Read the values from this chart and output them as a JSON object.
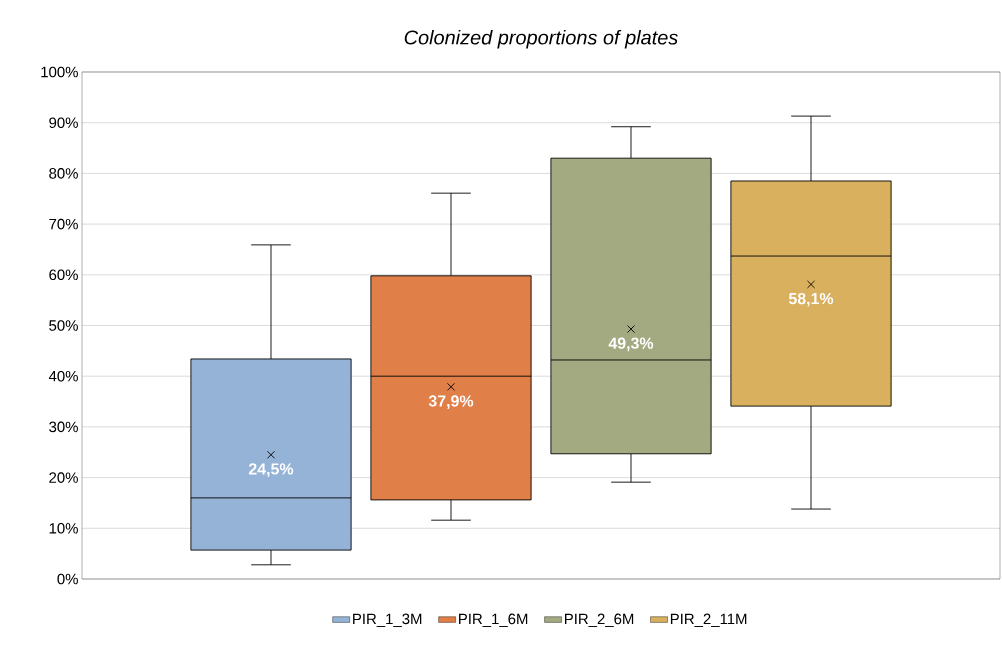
{
  "chart_data": {
    "type": "box",
    "title": "Colonized proportions of plates",
    "categories": [
      null
    ],
    "series": [
      {
        "name": "PIR_1_3M",
        "color": "#95b3d7",
        "boxes": [
          {
            "low": 2.8,
            "q1": 5.7,
            "median": 16.0,
            "q3": 43.4,
            "high": 65.9,
            "mean": 24.5
          }
        ],
        "value_labels": [
          "24,5%"
        ]
      },
      {
        "name": "PIR_1_6M",
        "color": "#e07f48",
        "boxes": [
          {
            "low": 11.6,
            "q1": 15.6,
            "median": 40.0,
            "q3": 59.8,
            "high": 76.1,
            "mean": 37.9
          }
        ],
        "value_labels": [
          "37,9%"
        ]
      },
      {
        "name": "PIR_2_6M",
        "color": "#a3aa82",
        "boxes": [
          {
            "low": 19.1,
            "q1": 24.7,
            "median": 43.2,
            "q3": 83.0,
            "high": 89.2,
            "mean": 49.3
          }
        ],
        "value_labels": [
          "49,3%"
        ]
      },
      {
        "name": "PIR_2_11M",
        "color": "#d8b05e",
        "boxes": [
          {
            "low": 13.8,
            "q1": 34.1,
            "median": 63.7,
            "q3": 78.5,
            "high": 91.3,
            "mean": 58.1
          }
        ],
        "value_labels": [
          "58,1%"
        ]
      }
    ],
    "ylim": [
      0,
      100
    ],
    "yticks": [
      {
        "value": 0,
        "label": "0%"
      },
      {
        "value": 10,
        "label": "10%"
      },
      {
        "value": 20,
        "label": "20%"
      },
      {
        "value": 30,
        "label": "30%"
      },
      {
        "value": 40,
        "label": "40%"
      },
      {
        "value": 50,
        "label": "50%"
      },
      {
        "value": 60,
        "label": "60%"
      },
      {
        "value": 70,
        "label": "70%"
      },
      {
        "value": 80,
        "label": "80%"
      },
      {
        "value": 90,
        "label": "90%"
      },
      {
        "value": 100,
        "label": "100%"
      }
    ],
    "grid": "y",
    "legend": "bottom",
    "marker": "cross",
    "tick_labels": "y"
  }
}
